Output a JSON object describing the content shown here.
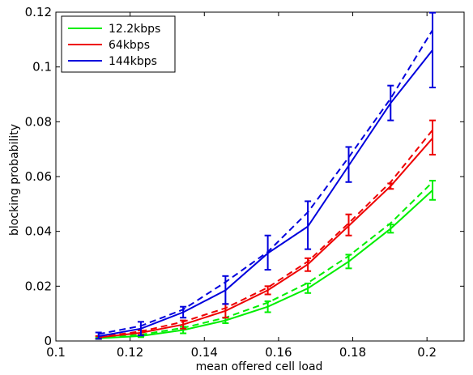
{
  "chart_data": {
    "type": "line",
    "title": "",
    "xlabel": "mean offered cell load",
    "ylabel": "blocking probability",
    "xlim": [
      0.1,
      0.21
    ],
    "ylim": [
      0,
      0.12
    ],
    "xticks": [
      0.1,
      0.12,
      0.14,
      0.16,
      0.18,
      0.2
    ],
    "yticks": [
      0,
      0.02,
      0.04,
      0.06,
      0.08,
      0.1,
      0.12
    ],
    "xtick_labels": [
      "0.1",
      "0.12",
      "0.14",
      "0.16",
      "0.18",
      "0.2"
    ],
    "ytick_labels": [
      "0",
      "0.02",
      "0.04",
      "0.06",
      "0.08",
      "0.1",
      "0.12"
    ],
    "grid": false,
    "legend_position": "top-left",
    "x": [
      0.1115,
      0.1229,
      0.1343,
      0.1457,
      0.1571,
      0.1679,
      0.1789,
      0.1902,
      0.2015
    ],
    "series": [
      {
        "name": "12.2kbps",
        "color": "#00ee00",
        "solid": [
          0.001,
          0.0018,
          0.004,
          0.0075,
          0.0125,
          0.0192,
          0.029,
          0.041,
          0.055
        ],
        "dashed": [
          0.0012,
          0.0023,
          0.0048,
          0.0085,
          0.014,
          0.0212,
          0.031,
          0.043,
          0.058
        ],
        "error_low": [
          0.0007,
          0.0014,
          0.0028,
          0.0065,
          0.0105,
          0.0175,
          0.0265,
          0.0395,
          0.0515
        ],
        "error_high": [
          0.0013,
          0.0022,
          0.0052,
          0.0085,
          0.0145,
          0.021,
          0.0315,
          0.0425,
          0.0585
        ]
      },
      {
        "name": "64kbps",
        "color": "#ee0000",
        "solid": [
          0.0013,
          0.003,
          0.006,
          0.011,
          0.0185,
          0.028,
          0.042,
          0.0565,
          0.074
        ],
        "dashed": [
          0.0015,
          0.0035,
          0.007,
          0.012,
          0.0195,
          0.029,
          0.043,
          0.058,
          0.077
        ],
        "error_low": [
          0.0008,
          0.0022,
          0.0045,
          0.0085,
          0.017,
          0.0255,
          0.0385,
          0.0555,
          0.068
        ],
        "error_high": [
          0.0018,
          0.0038,
          0.0075,
          0.0135,
          0.02,
          0.0302,
          0.0462,
          0.0575,
          0.0805
        ]
      },
      {
        "name": "144kbps",
        "color": "#0000dd",
        "solid": [
          0.0017,
          0.0045,
          0.0105,
          0.0185,
          0.032,
          0.0418,
          0.064,
          0.0868,
          0.1062
        ],
        "dashed": [
          0.0025,
          0.0055,
          0.0115,
          0.0215,
          0.0325,
          0.047,
          0.067,
          0.0885,
          0.1135
        ],
        "error_low": [
          0.0008,
          0.002,
          0.0085,
          0.0135,
          0.026,
          0.0335,
          0.058,
          0.0805,
          0.0925
        ],
        "error_high": [
          0.0031,
          0.007,
          0.0125,
          0.0237,
          0.0385,
          0.051,
          0.0708,
          0.0932,
          0.1198
        ]
      }
    ]
  }
}
